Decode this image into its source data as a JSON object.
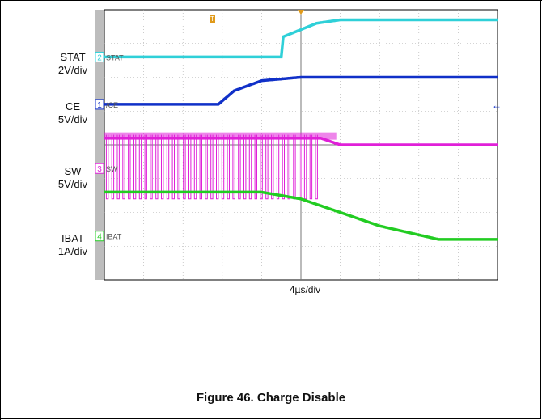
{
  "chart_data": {
    "type": "line",
    "title": "Figure 46. Charge Disable",
    "xlabel": "4µs/div",
    "x_divisions": 10,
    "y_divisions": 8,
    "grid": true,
    "channels": [
      {
        "id": "2",
        "marker_label": "STAT",
        "name": "STAT",
        "scale": "2V/div",
        "color": "#2fd0d8"
      },
      {
        "id": "1",
        "marker_label": "̅CE",
        "name": "CE",
        "scale": "5V/div",
        "color": "#1030c8",
        "overline": true
      },
      {
        "id": "3",
        "marker_label": "SW",
        "name": "SW",
        "scale": "5V/div",
        "color": "#e020d8"
      },
      {
        "id": "4",
        "marker_label": "IBAT",
        "name": "IBAT",
        "scale": "1A/div",
        "color": "#22cc22"
      }
    ],
    "series": [
      {
        "name": "STAT",
        "x_div": [
          0,
          4.5,
          4.55,
          5.4,
          6.0,
          10
        ],
        "y_div": [
          6.6,
          6.6,
          7.2,
          7.6,
          7.7,
          7.7
        ]
      },
      {
        "name": "CE",
        "x_div": [
          0,
          2.9,
          3.3,
          4.0,
          5.0,
          10
        ],
        "y_div": [
          5.2,
          5.2,
          5.6,
          5.9,
          6.0,
          6.0
        ]
      },
      {
        "name": "SW",
        "x_div": [
          0,
          5.5,
          6.0,
          10
        ],
        "y_div": [
          4.2,
          4.2,
          4.0,
          4.0
        ]
      },
      {
        "name": "IBAT",
        "x_div": [
          0,
          4.0,
          5.0,
          6.0,
          7.0,
          8.5,
          10
        ],
        "y_div": [
          2.6,
          2.6,
          2.4,
          2.0,
          1.6,
          1.2,
          1.2
        ]
      }
    ]
  }
}
